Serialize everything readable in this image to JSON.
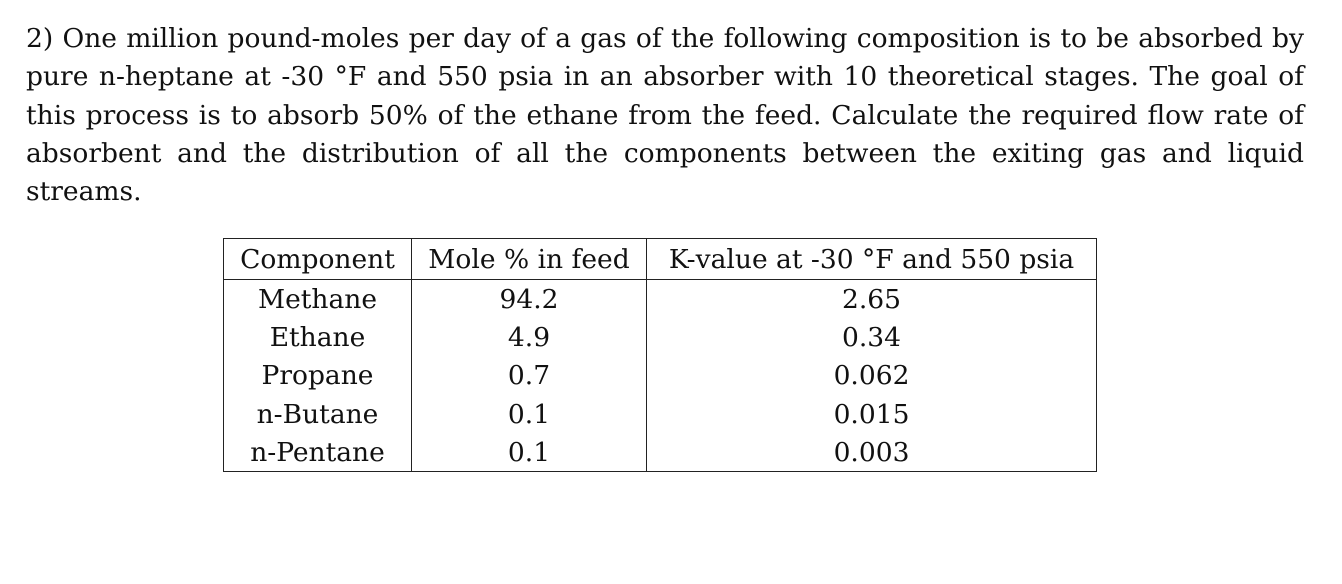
{
  "problem": {
    "text": "2) One million pound-moles per day of a gas of the following composition is to be absorbed by pure n-heptane at -30 °F and 550 psia in an absorber with 10 theoretical stages. The goal of this process is to absorb 50% of the ethane from the feed. Calculate the required flow rate of absorbent and the distribution of all the components between the exiting gas and liquid streams."
  },
  "table": {
    "headers": [
      "Component",
      "Mole % in feed",
      "K-value at -30 °F and 550 psia"
    ],
    "rows": [
      [
        "Methane",
        "94.2",
        "2.65"
      ],
      [
        "Ethane",
        "4.9",
        "0.34"
      ],
      [
        "Propane",
        "0.7",
        "0.062"
      ],
      [
        "n-Butane",
        "0.1",
        "0.015"
      ],
      [
        "n-Pentane",
        "0.1",
        "0.003"
      ]
    ]
  }
}
